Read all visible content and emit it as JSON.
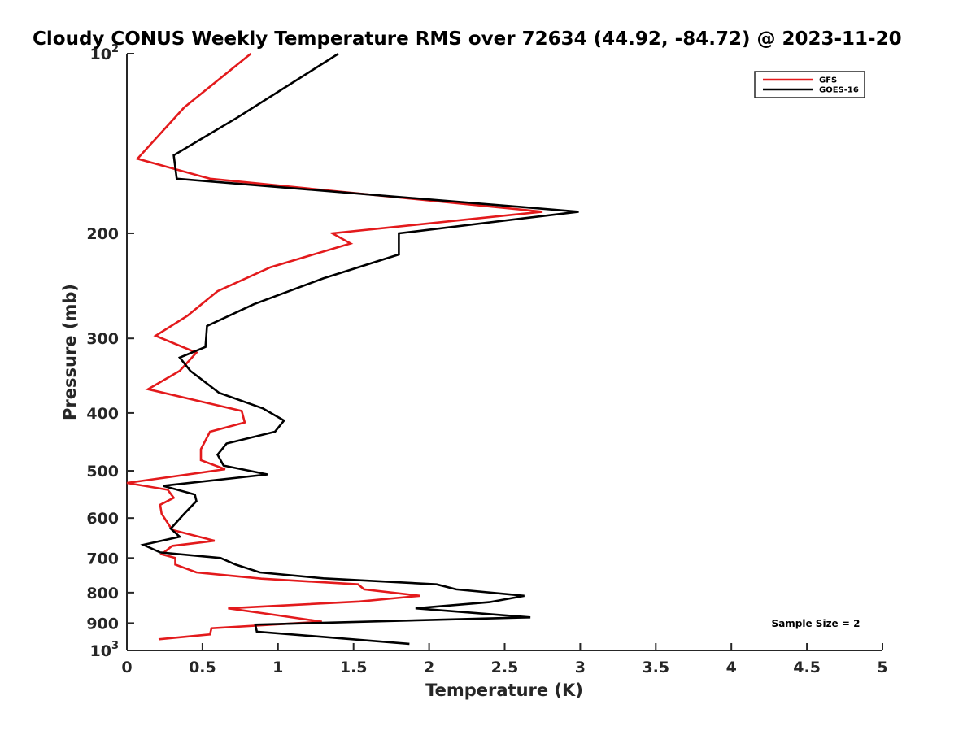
{
  "chart_data": {
    "type": "line",
    "title": "Cloudy CONUS Weekly Temperature RMS over 72634 (44.92, -84.72) @ 2023-11-20",
    "xlabel": "Temperature (K)",
    "ylabel": "Pressure (mb)",
    "xlim": [
      0,
      5
    ],
    "ylim": [
      100,
      1000
    ],
    "y_scale": "log",
    "y_direction": "reversed",
    "grid": false,
    "legend_position": "top-right",
    "x_ticks": [
      0,
      0.5,
      1,
      1.5,
      2,
      2.5,
      3,
      3.5,
      4,
      4.5,
      5
    ],
    "x_tick_labels": [
      "0",
      "0.5",
      "1",
      "1.5",
      "2",
      "2.5",
      "3",
      "3.5",
      "4",
      "4.5",
      "5"
    ],
    "y_ticks": [
      100,
      200,
      300,
      400,
      500,
      600,
      700,
      800,
      900,
      1000
    ],
    "y_tick_labels": [
      {
        "base": "10",
        "exp": "2"
      },
      {
        "base": "200",
        "exp": ""
      },
      {
        "base": "300",
        "exp": ""
      },
      {
        "base": "400",
        "exp": ""
      },
      {
        "base": "500",
        "exp": ""
      },
      {
        "base": "600",
        "exp": ""
      },
      {
        "base": "700",
        "exp": ""
      },
      {
        "base": "800",
        "exp": ""
      },
      {
        "base": "900",
        "exp": ""
      },
      {
        "base": "10",
        "exp": "3"
      }
    ],
    "annotation": "Sample Size = 2",
    "series": [
      {
        "name": "GFS",
        "color": "#e31a1c",
        "x": [
          0.82,
          0.38,
          0.07,
          0.55,
          2.75,
          1.36,
          1.48,
          0.95,
          0.6,
          0.4,
          0.19,
          0.46,
          0.35,
          0.14,
          0.76,
          0.78,
          0.55,
          0.49,
          0.49,
          0.65,
          0.0,
          0.27,
          0.31,
          0.22,
          0.23,
          0.3,
          0.58,
          0.3,
          0.23,
          0.32,
          0.32,
          0.46,
          0.89,
          1.53,
          1.57,
          1.94,
          1.54,
          0.67,
          1.02,
          1.29,
          0.56,
          0.55,
          0.21
        ],
        "y": [
          100,
          123,
          150,
          162,
          184,
          200,
          208,
          228,
          250,
          275,
          297,
          317,
          340,
          365,
          397,
          415,
          430,
          460,
          480,
          497,
          524,
          538,
          555,
          570,
          590,
          628,
          655,
          668,
          690,
          700,
          718,
          740,
          758,
          775,
          790,
          810,
          828,
          850,
          875,
          895,
          918,
          940,
          958
        ]
      },
      {
        "name": "GOES-16",
        "color": "#000000",
        "x": [
          1.4,
          0.73,
          0.31,
          0.33,
          2.99,
          1.8,
          1.8,
          1.3,
          0.84,
          0.53,
          0.52,
          0.35,
          0.42,
          0.61,
          0.9,
          1.04,
          0.98,
          0.66,
          0.6,
          0.64,
          0.93,
          0.24,
          0.45,
          0.46,
          0.38,
          0.29,
          0.35,
          0.11,
          0.22,
          0.62,
          0.72,
          0.88,
          1.3,
          2.05,
          2.18,
          2.63,
          2.4,
          1.91,
          2.67,
          0.85,
          0.86,
          1.87
        ],
        "y": [
          100,
          128,
          148,
          162,
          184,
          200,
          217,
          238,
          263,
          286,
          310,
          323,
          340,
          370,
          393,
          412,
          430,
          450,
          470,
          490,
          507,
          530,
          548,
          562,
          590,
          625,
          645,
          665,
          685,
          700,
          718,
          740,
          757,
          775,
          790,
          810,
          830,
          850,
          880,
          905,
          930,
          975
        ]
      }
    ]
  }
}
